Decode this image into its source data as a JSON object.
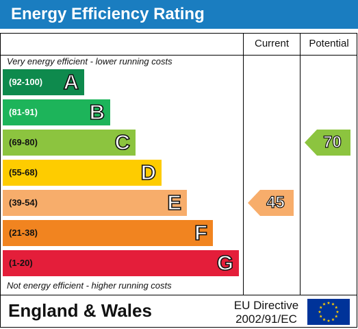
{
  "header": {
    "title": "Energy Efficiency Rating"
  },
  "columns": {
    "current": "Current",
    "potential": "Potential"
  },
  "captions": {
    "top": "Very energy efficient - lower running costs",
    "bottom": "Not energy efficient - higher running costs"
  },
  "footer": {
    "country": "England & Wales",
    "directive_line1": "EU Directive",
    "directive_line2": "2002/91/EC",
    "flag_icon": "eu-flag-icon"
  },
  "chart_data": {
    "type": "bar",
    "title": "Energy Efficiency Rating",
    "bands": [
      {
        "letter": "A",
        "range": "(92-100)",
        "min": 92,
        "max": 100,
        "color": "#0e8a4d",
        "label_color": "#ffffff"
      },
      {
        "letter": "B",
        "range": "(81-91)",
        "min": 81,
        "max": 91,
        "color": "#1db45a",
        "label_color": "#ffffff"
      },
      {
        "letter": "C",
        "range": "(69-80)",
        "min": 69,
        "max": 80,
        "color": "#8cc43f",
        "label_color": "#111111"
      },
      {
        "letter": "D",
        "range": "(55-68)",
        "min": 55,
        "max": 68,
        "color": "#fecc00",
        "label_color": "#111111"
      },
      {
        "letter": "E",
        "range": "(39-54)",
        "min": 39,
        "max": 54,
        "color": "#f7ad6b",
        "label_color": "#111111"
      },
      {
        "letter": "F",
        "range": "(21-38)",
        "min": 21,
        "max": 38,
        "color": "#f18420",
        "label_color": "#111111"
      },
      {
        "letter": "G",
        "range": "(1-20)",
        "min": 1,
        "max": 20,
        "color": "#e41e3a",
        "label_color": "#111111"
      }
    ],
    "current": {
      "value": 45,
      "band": "E",
      "color": "#f7ad6b"
    },
    "potential": {
      "value": 70,
      "band": "C",
      "color": "#8cc43f"
    }
  }
}
